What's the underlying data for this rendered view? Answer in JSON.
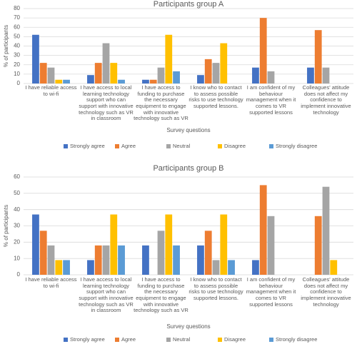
{
  "chart_data": [
    {
      "type": "bar",
      "title": "Participants group A",
      "x_label": "Survey questions",
      "y_label": "% of participants",
      "categories": [
        "I have reliable access to wi-fi",
        "I have access to local learning technology support who can support with innovative technology such as VR in classroom",
        "I have access to funding to purchase the necessary equipment to engage with innovative technology such as VR",
        "I know who to contact to assess possible risks to use technology supported lessons.",
        "I am confident of my behaviour management when it comes to VR supported lessons",
        "Colleagues' attitude does not affect my confidence to implement innovative technology"
      ],
      "series": [
        {
          "name": "Strongly agree",
          "color": "#4472c4",
          "values": [
            52,
            9,
            4,
            9,
            17,
            17
          ]
        },
        {
          "name": "Agree",
          "color": "#ed7d31",
          "values": [
            22,
            22,
            4,
            26,
            70,
            57
          ]
        },
        {
          "name": "Neutral",
          "color": "#a5a5a5",
          "values": [
            17,
            43,
            17,
            22,
            13,
            17
          ]
        },
        {
          "name": "Disagree",
          "color": "#ffc000",
          "values": [
            4,
            22,
            52,
            43,
            0,
            0
          ]
        },
        {
          "name": "Strongly disagree",
          "color": "#5b9bd5",
          "values": [
            4,
            4,
            13,
            0,
            0,
            0
          ]
        }
      ],
      "ylim": [
        0,
        80
      ],
      "yticks": [
        0,
        10,
        20,
        30,
        40,
        50,
        60,
        70,
        80
      ],
      "grid": true,
      "legend": "bottom"
    },
    {
      "type": "bar",
      "title": "Participants group B",
      "x_label": "Survey questions",
      "y_label": "% of participants",
      "categories": [
        "I have reliable access to wi-fi",
        "I have access to local learning technology support who can support with innovative technology such as VR in classroom",
        "I have access to funding to purchase the necessary equipment to engage with innovative technology such as VR",
        "I know who to contact to assess possible risks to use technology supported lessons.",
        "I am confident of my behaviour management when it comes to VR supported lessons",
        "Colleagues' attitude does not affect my confidence to implement innovative technology"
      ],
      "series": [
        {
          "name": "Strongly agree",
          "color": "#4472c4",
          "values": [
            37,
            9,
            18,
            18,
            9,
            0
          ]
        },
        {
          "name": "Agree",
          "color": "#ed7d31",
          "values": [
            27,
            18,
            0,
            27,
            55,
            36
          ]
        },
        {
          "name": "Neutral",
          "color": "#a5a5a5",
          "values": [
            18,
            18,
            27,
            9,
            36,
            54
          ]
        },
        {
          "name": "Disagree",
          "color": "#ffc000",
          "values": [
            9,
            37,
            37,
            37,
            0,
            9
          ]
        },
        {
          "name": "Strongly disagree",
          "color": "#5b9bd5",
          "values": [
            9,
            18,
            18,
            9,
            0,
            0
          ]
        }
      ],
      "ylim": [
        0,
        60
      ],
      "yticks": [
        0,
        10,
        20,
        30,
        40,
        50,
        60
      ],
      "grid": true,
      "legend": "bottom"
    }
  ]
}
